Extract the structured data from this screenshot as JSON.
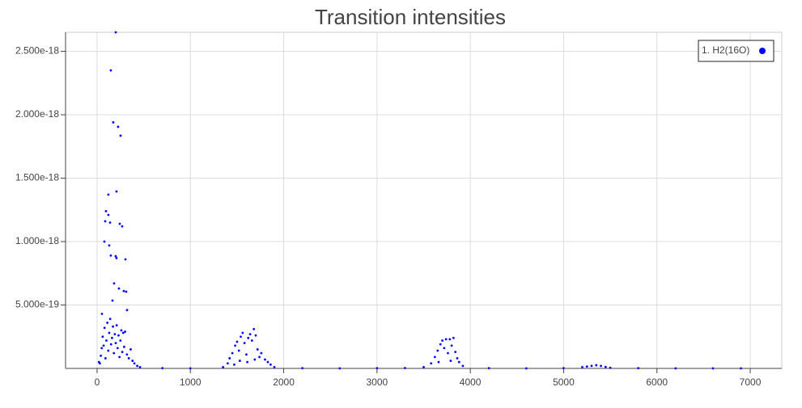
{
  "chart_data": {
    "type": "scatter",
    "title": "Transition intensities",
    "x": [
      200,
      147,
      173,
      225,
      252,
      208,
      121,
      95,
      121,
      87,
      243,
      269,
      139,
      78,
      130,
      147,
      199,
      208,
      304,
      182,
      234,
      286,
      312,
      165,
      321,
      52,
      30,
      50,
      60,
      70,
      80,
      90,
      100,
      110,
      120,
      130,
      140,
      150,
      160,
      170,
      180,
      190,
      200,
      210,
      220,
      230,
      240,
      250,
      260,
      270,
      280,
      290,
      300,
      320,
      340,
      360,
      380,
      400,
      430,
      460,
      20,
      40,
      1350,
      1400,
      1420,
      1450,
      1480,
      1500,
      1520,
      1540,
      1560,
      1580,
      1600,
      1620,
      1640,
      1660,
      1680,
      1700,
      1720,
      1740,
      1760,
      1800,
      1830,
      1860,
      1900,
      1530,
      1610,
      1690,
      1470,
      3500,
      3580,
      3620,
      3650,
      3680,
      3700,
      3720,
      3740,
      3760,
      3780,
      3800,
      3820,
      3840,
      3860,
      3880,
      3920,
      3660,
      3790,
      5200,
      5250,
      5300,
      5350,
      5400,
      5450,
      5500,
      700,
      1000,
      2200,
      2600,
      3000,
      3300,
      4200,
      4600,
      5000,
      5800,
      6200,
      6600,
      6900
    ],
    "series": [
      {
        "name": "1. H2(16O)",
        "color": "#0000ff",
        "values": [
          2.65e-18,
          2.35e-18,
          1.94e-18,
          1.905e-18,
          1.835e-18,
          1.395e-18,
          1.37e-18,
          1.24e-18,
          1.21e-18,
          1.16e-18,
          1.14e-18,
          1.12e-18,
          1.15e-18,
          1e-18,
          9.7e-19,
          8.9e-19,
          8.85e-19,
          8.7e-19,
          8.6e-19,
          6.7e-19,
          6.3e-19,
          6.1e-19,
          6.05e-19,
          5.35e-19,
          4.6e-19,
          4.3e-19,
          4e-20,
          1.6e-19,
          2.5e-19,
          1.8e-19,
          3.2e-19,
          8e-20,
          2.2e-19,
          3.6e-19,
          1.4e-19,
          2.8e-19,
          3.9e-19,
          1.9e-19,
          2.4e-19,
          3.3e-19,
          1.2e-19,
          2.7e-19,
          2e-19,
          3.4e-19,
          1.6e-19,
          2.6e-19,
          9e-20,
          2.2e-19,
          3e-19,
          1.3e-19,
          2.8e-19,
          1.7e-19,
          2.9e-19,
          1.1e-19,
          8e-20,
          1.5e-19,
          6e-20,
          4e-20,
          2e-20,
          1e-20,
          5e-20,
          1e-19,
          1e-20,
          4e-20,
          8e-20,
          1.2e-19,
          1.8e-19,
          2.1e-19,
          1.4e-19,
          2.5e-19,
          2.8e-19,
          2e-19,
          1.1e-19,
          2.4e-19,
          2.7e-19,
          2.2e-19,
          3.1e-19,
          2.6e-19,
          1.5e-19,
          9e-20,
          1.2e-19,
          7e-20,
          5e-20,
          3e-20,
          1e-20,
          6e-20,
          5e-20,
          7e-20,
          3e-20,
          1e-20,
          4e-20,
          9e-20,
          1.4e-19,
          1.9e-19,
          2.2e-19,
          1.6e-19,
          2.3e-19,
          1.2e-19,
          2.3e-19,
          1.8e-19,
          2.4e-19,
          1.3e-19,
          8e-20,
          5e-20,
          2e-20,
          5e-20,
          6e-20,
          1e-20,
          1.5e-20,
          2e-20,
          2.5e-20,
          2e-20,
          1.2e-20,
          5e-21,
          2e-21,
          1e-21,
          2e-21,
          1e-21,
          2e-21,
          3e-21,
          2e-21,
          1e-21,
          2e-21,
          2e-21,
          1e-21,
          1e-21,
          1e-21
        ]
      }
    ],
    "xlim": [
      -338,
      7338
    ],
    "xticks": [
      0,
      1000,
      2000,
      3000,
      4000,
      5000,
      6000,
      7000
    ],
    "ylim": [
      0,
      2.65e-18
    ],
    "yticks": [
      {
        "value": 5e-19,
        "label": "5.000e-19"
      },
      {
        "value": 1e-18,
        "label": "1.000e-18"
      },
      {
        "value": 1.5e-18,
        "label": "1.500e-18"
      },
      {
        "value": 2e-18,
        "label": "2.000e-18"
      },
      {
        "value": 2.5e-18,
        "label": "2.500e-18"
      }
    ],
    "grid": true,
    "legend": "top-right"
  }
}
